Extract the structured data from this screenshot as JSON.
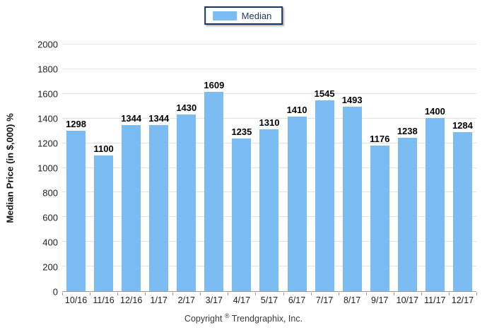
{
  "legend": {
    "label": "Median",
    "swatch_color": "#7bbdf3"
  },
  "chart_data": {
    "type": "bar",
    "title": "",
    "categories": [
      "10/16",
      "11/16",
      "12/16",
      "1/17",
      "2/17",
      "3/17",
      "4/17",
      "5/17",
      "6/17",
      "7/17",
      "8/17",
      "9/17",
      "10/17",
      "11/17",
      "12/17"
    ],
    "series": [
      {
        "name": "Median",
        "values": [
          1298,
          1100,
          1344,
          1344,
          1430,
          1609,
          1235,
          1310,
          1410,
          1545,
          1493,
          1176,
          1238,
          1400,
          1284
        ]
      }
    ],
    "xlabel": "",
    "ylabel": "Median Price (in $,000) %",
    "ylim": [
      0,
      2000
    ],
    "ytick_step": 200,
    "grid": true,
    "legend_position": "top-center",
    "bar_color": "#7bbdf3",
    "value_labels": true
  },
  "footer": {
    "copyright_prefix": "Copyright",
    "copyright_symbol": "®",
    "copyright_suffix": "Trendgraphix, Inc."
  }
}
